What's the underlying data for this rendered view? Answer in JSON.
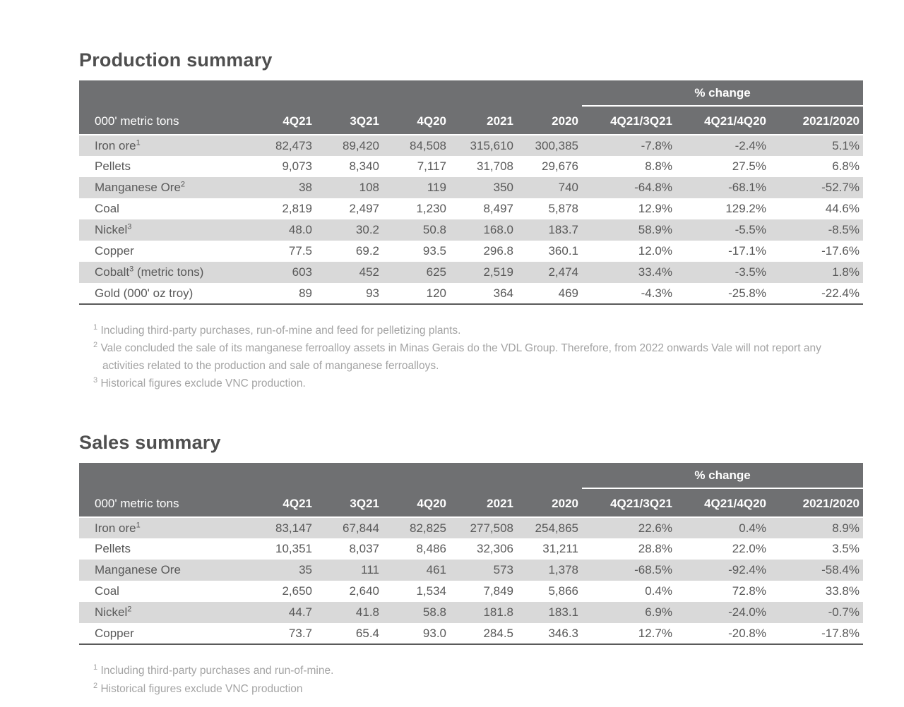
{
  "colors": {
    "header_bg": "#6f7072",
    "stripe_bg": "#d9d9d9",
    "body_text": "#595959",
    "footnote_text": "#a3a3a3"
  },
  "production": {
    "title": "Production summary",
    "table": {
      "unit_label": "000' metric tons",
      "pct_change_label": "% change",
      "columns": [
        "4Q21",
        "3Q21",
        "4Q20",
        "2021",
        "2020",
        "4Q21/3Q21",
        "4Q21/4Q20",
        "2021/2020"
      ],
      "rows": [
        {
          "label": "Iron ore",
          "sup": "1",
          "suffix": "",
          "values": [
            "82,473",
            "89,420",
            "84,508",
            "315,610",
            "300,385",
            "-7.8%",
            "-2.4%",
            "5.1%"
          ]
        },
        {
          "label": "Pellets",
          "sup": "",
          "suffix": "",
          "values": [
            "9,073",
            "8,340",
            "7,117",
            "31,708",
            "29,676",
            "8.8%",
            "27.5%",
            "6.8%"
          ]
        },
        {
          "label": "Manganese Ore",
          "sup": "2",
          "suffix": "",
          "values": [
            "38",
            "108",
            "119",
            "350",
            "740",
            "-64.8%",
            "-68.1%",
            "-52.7%"
          ]
        },
        {
          "label": "Coal",
          "sup": "",
          "suffix": "",
          "values": [
            "2,819",
            "2,497",
            "1,230",
            "8,497",
            "5,878",
            "12.9%",
            "129.2%",
            "44.6%"
          ]
        },
        {
          "label": "Nickel",
          "sup": "3",
          "suffix": "",
          "values": [
            "48.0",
            "30.2",
            "50.8",
            "168.0",
            "183.7",
            "58.9%",
            "-5.5%",
            "-8.5%"
          ]
        },
        {
          "label": "Copper",
          "sup": "",
          "suffix": "",
          "values": [
            "77.5",
            "69.2",
            "93.5",
            "296.8",
            "360.1",
            "12.0%",
            "-17.1%",
            "-17.6%"
          ]
        },
        {
          "label": "Cobalt",
          "sup": "3",
          "suffix": " (metric tons)",
          "values": [
            "603",
            "452",
            "625",
            "2,519",
            "2,474",
            "33.4%",
            "-3.5%",
            "1.8%"
          ]
        },
        {
          "label": "Gold (000' oz troy)",
          "sup": "",
          "suffix": "",
          "values": [
            "89",
            "93",
            "120",
            "364",
            "469",
            "-4.3%",
            "-25.8%",
            "-22.4%"
          ]
        }
      ]
    },
    "footnotes": [
      {
        "sup": "1",
        "text": "Including third-party purchases, run-of-mine and feed for pelletizing plants."
      },
      {
        "sup": "2",
        "text": "Vale concluded the sale of its manganese ferroalloy assets in Minas Gerais do the VDL Group. Therefore, from 2022 onwards Vale will not report any activities related to the production and sale of manganese ferroalloys."
      },
      {
        "sup": "3",
        "text": "Historical figures exclude VNC production."
      }
    ]
  },
  "sales": {
    "title": "Sales summary",
    "table": {
      "unit_label": "000' metric tons",
      "pct_change_label": "% change",
      "columns": [
        "4Q21",
        "3Q21",
        "4Q20",
        "2021",
        "2020",
        "4Q21/3Q21",
        "4Q21/4Q20",
        "2021/2020"
      ],
      "rows": [
        {
          "label": "Iron ore",
          "sup": "1",
          "suffix": "",
          "values": [
            "83,147",
            "67,844",
            "82,825",
            "277,508",
            "254,865",
            "22.6%",
            "0.4%",
            "8.9%"
          ]
        },
        {
          "label": "Pellets",
          "sup": "",
          "suffix": "",
          "values": [
            "10,351",
            "8,037",
            "8,486",
            "32,306",
            "31,211",
            "28.8%",
            "22.0%",
            "3.5%"
          ]
        },
        {
          "label": "Manganese Ore",
          "sup": "",
          "suffix": "",
          "values": [
            "35",
            "111",
            "461",
            "573",
            "1,378",
            "-68.5%",
            "-92.4%",
            "-58.4%"
          ]
        },
        {
          "label": "Coal",
          "sup": "",
          "suffix": "",
          "values": [
            "2,650",
            "2,640",
            "1,534",
            "7,849",
            "5,866",
            "0.4%",
            "72.8%",
            "33.8%"
          ]
        },
        {
          "label": "Nickel",
          "sup": "2",
          "suffix": "",
          "values": [
            "44.7",
            "41.8",
            "58.8",
            "181.8",
            "183.1",
            "6.9%",
            "-24.0%",
            "-0.7%"
          ]
        },
        {
          "label": "Copper",
          "sup": "",
          "suffix": "",
          "values": [
            "73.7",
            "65.4",
            "93.0",
            "284.5",
            "346.3",
            "12.7%",
            "-20.8%",
            "-17.8%"
          ]
        }
      ]
    },
    "footnotes": [
      {
        "sup": "1",
        "text": "Including third-party purchases and run-of-mine."
      },
      {
        "sup": "2",
        "text": "Historical figures exclude VNC production"
      }
    ]
  }
}
